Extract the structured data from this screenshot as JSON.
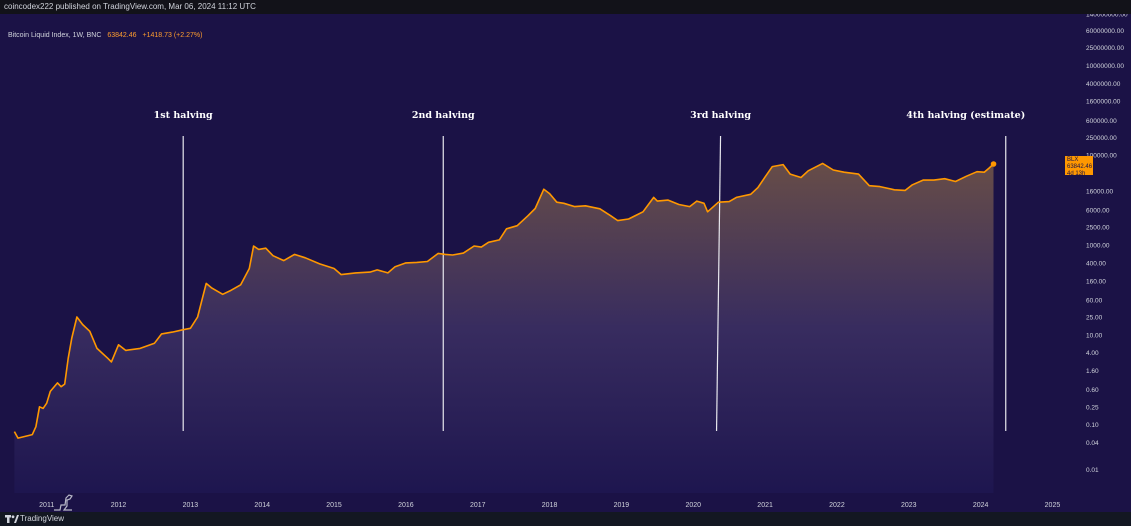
{
  "header": {
    "publish_text": "coincodex222 published on TradingView.com, Mar 06, 2024 11:12 UTC"
  },
  "symbol": {
    "name": "Bitcoin Liquid Index, 1W, BNC",
    "price": "63842.46",
    "change": "+1418.73 (+2.27%)"
  },
  "badge": {
    "ticker": "BLX",
    "price": "63842.46",
    "countdown": "4d 13h"
  },
  "footer": {
    "brand": "TradingView"
  },
  "colors": {
    "background": "#1b1246",
    "line": "#ff9800",
    "axis_text": "#d1d4dc",
    "halving_line": "#e8e8ee"
  },
  "icons": {
    "logo": "tradingview-logo-icon",
    "watermark": "dinosaur-icon"
  },
  "chart_data": {
    "type": "area",
    "title": "Bitcoin Liquid Index, 1W, BNC",
    "xlabel": "",
    "ylabel": "",
    "y_scale": "log",
    "grid": false,
    "xlim": [
      2010.35,
      2025.3
    ],
    "ylim": [
      0.003,
      140000000
    ],
    "x_ticks": [
      "2011",
      "2012",
      "2013",
      "2014",
      "2015",
      "2016",
      "2017",
      "2018",
      "2019",
      "2020",
      "2021",
      "2022",
      "2023",
      "2024",
      "2025"
    ],
    "y_ticks": [
      {
        "value": 140000000,
        "label": "140000000.00"
      },
      {
        "value": 60000000,
        "label": "60000000.00"
      },
      {
        "value": 25000000,
        "label": "25000000.00"
      },
      {
        "value": 10000000,
        "label": "10000000.00"
      },
      {
        "value": 4000000,
        "label": "4000000.00"
      },
      {
        "value": 1600000,
        "label": "1600000.00"
      },
      {
        "value": 600000,
        "label": "600000.00"
      },
      {
        "value": 250000,
        "label": "250000.00"
      },
      {
        "value": 100000,
        "label": "100000.00"
      },
      {
        "value": 16000,
        "label": "16000.00"
      },
      {
        "value": 6000,
        "label": "6000.00"
      },
      {
        "value": 2500,
        "label": "2500.00"
      },
      {
        "value": 1000,
        "label": "1000.00"
      },
      {
        "value": 400,
        "label": "400.00"
      },
      {
        "value": 160,
        "label": "160.00"
      },
      {
        "value": 60,
        "label": "60.00"
      },
      {
        "value": 25,
        "label": "25.00"
      },
      {
        "value": 10,
        "label": "10.00"
      },
      {
        "value": 4,
        "label": "4.00"
      },
      {
        "value": 1.6,
        "label": "1.60"
      },
      {
        "value": 0.6,
        "label": "0.60"
      },
      {
        "value": 0.25,
        "label": "0.25"
      },
      {
        "value": 0.1,
        "label": "0.10"
      },
      {
        "value": 0.04,
        "label": "0.04"
      },
      {
        "value": 0.01,
        "label": "0.01"
      }
    ],
    "series": [
      {
        "values": [
          {
            "x": 2010.55,
            "y": 0.07
          },
          {
            "x": 2010.6,
            "y": 0.05
          },
          {
            "x": 2010.8,
            "y": 0.06
          },
          {
            "x": 2010.85,
            "y": 0.09
          },
          {
            "x": 2010.9,
            "y": 0.25
          },
          {
            "x": 2010.95,
            "y": 0.23
          },
          {
            "x": 2011.0,
            "y": 0.3
          },
          {
            "x": 2011.05,
            "y": 0.55
          },
          {
            "x": 2011.15,
            "y": 0.85
          },
          {
            "x": 2011.2,
            "y": 0.7
          },
          {
            "x": 2011.25,
            "y": 0.8
          },
          {
            "x": 2011.3,
            "y": 3.0
          },
          {
            "x": 2011.35,
            "y": 8.5
          },
          {
            "x": 2011.42,
            "y": 25
          },
          {
            "x": 2011.5,
            "y": 17
          },
          {
            "x": 2011.6,
            "y": 12
          },
          {
            "x": 2011.7,
            "y": 5
          },
          {
            "x": 2011.85,
            "y": 3.0
          },
          {
            "x": 2011.9,
            "y": 2.5
          },
          {
            "x": 2012.0,
            "y": 6
          },
          {
            "x": 2012.1,
            "y": 4.5
          },
          {
            "x": 2012.3,
            "y": 5
          },
          {
            "x": 2012.5,
            "y": 6.5
          },
          {
            "x": 2012.6,
            "y": 10.5
          },
          {
            "x": 2012.75,
            "y": 11.5
          },
          {
            "x": 2012.9,
            "y": 13
          },
          {
            "x": 2013.0,
            "y": 14
          },
          {
            "x": 2013.1,
            "y": 25
          },
          {
            "x": 2013.22,
            "y": 140
          },
          {
            "x": 2013.3,
            "y": 110
          },
          {
            "x": 2013.45,
            "y": 80
          },
          {
            "x": 2013.55,
            "y": 95
          },
          {
            "x": 2013.7,
            "y": 130
          },
          {
            "x": 2013.82,
            "y": 300
          },
          {
            "x": 2013.88,
            "y": 950
          },
          {
            "x": 2013.95,
            "y": 800
          },
          {
            "x": 2014.05,
            "y": 850
          },
          {
            "x": 2014.15,
            "y": 580
          },
          {
            "x": 2014.3,
            "y": 450
          },
          {
            "x": 2014.45,
            "y": 620
          },
          {
            "x": 2014.6,
            "y": 520
          },
          {
            "x": 2014.8,
            "y": 380
          },
          {
            "x": 2015.0,
            "y": 300
          },
          {
            "x": 2015.1,
            "y": 220
          },
          {
            "x": 2015.3,
            "y": 240
          },
          {
            "x": 2015.5,
            "y": 250
          },
          {
            "x": 2015.6,
            "y": 280
          },
          {
            "x": 2015.75,
            "y": 240
          },
          {
            "x": 2015.85,
            "y": 330
          },
          {
            "x": 2016.0,
            "y": 400
          },
          {
            "x": 2016.15,
            "y": 410
          },
          {
            "x": 2016.3,
            "y": 430
          },
          {
            "x": 2016.45,
            "y": 650
          },
          {
            "x": 2016.55,
            "y": 620
          },
          {
            "x": 2016.65,
            "y": 600
          },
          {
            "x": 2016.8,
            "y": 660
          },
          {
            "x": 2016.95,
            "y": 950
          },
          {
            "x": 2017.05,
            "y": 900
          },
          {
            "x": 2017.15,
            "y": 1150
          },
          {
            "x": 2017.3,
            "y": 1300
          },
          {
            "x": 2017.4,
            "y": 2300
          },
          {
            "x": 2017.55,
            "y": 2700
          },
          {
            "x": 2017.7,
            "y": 4500
          },
          {
            "x": 2017.8,
            "y": 6500
          },
          {
            "x": 2017.92,
            "y": 17500
          },
          {
            "x": 2018.0,
            "y": 14000
          },
          {
            "x": 2018.1,
            "y": 9000
          },
          {
            "x": 2018.2,
            "y": 8500
          },
          {
            "x": 2018.35,
            "y": 7200
          },
          {
            "x": 2018.5,
            "y": 7500
          },
          {
            "x": 2018.7,
            "y": 6400
          },
          {
            "x": 2018.85,
            "y": 4500
          },
          {
            "x": 2018.95,
            "y": 3500
          },
          {
            "x": 2019.1,
            "y": 3800
          },
          {
            "x": 2019.3,
            "y": 5500
          },
          {
            "x": 2019.45,
            "y": 11500
          },
          {
            "x": 2019.5,
            "y": 9500
          },
          {
            "x": 2019.65,
            "y": 10000
          },
          {
            "x": 2019.8,
            "y": 8000
          },
          {
            "x": 2019.95,
            "y": 7200
          },
          {
            "x": 2020.05,
            "y": 9500
          },
          {
            "x": 2020.15,
            "y": 8500
          },
          {
            "x": 2020.2,
            "y": 5500
          },
          {
            "x": 2020.35,
            "y": 9000
          },
          {
            "x": 2020.5,
            "y": 9300
          },
          {
            "x": 2020.6,
            "y": 11500
          },
          {
            "x": 2020.8,
            "y": 13500
          },
          {
            "x": 2020.9,
            "y": 19000
          },
          {
            "x": 2021.0,
            "y": 33000
          },
          {
            "x": 2021.1,
            "y": 56000
          },
          {
            "x": 2021.25,
            "y": 62000
          },
          {
            "x": 2021.35,
            "y": 38000
          },
          {
            "x": 2021.5,
            "y": 32000
          },
          {
            "x": 2021.6,
            "y": 45000
          },
          {
            "x": 2021.8,
            "y": 66000
          },
          {
            "x": 2021.95,
            "y": 47000
          },
          {
            "x": 2022.1,
            "y": 42000
          },
          {
            "x": 2022.3,
            "y": 38000
          },
          {
            "x": 2022.45,
            "y": 21000
          },
          {
            "x": 2022.6,
            "y": 20000
          },
          {
            "x": 2022.8,
            "y": 17000
          },
          {
            "x": 2022.95,
            "y": 16500
          },
          {
            "x": 2023.05,
            "y": 22000
          },
          {
            "x": 2023.2,
            "y": 28000
          },
          {
            "x": 2023.35,
            "y": 28000
          },
          {
            "x": 2023.5,
            "y": 30000
          },
          {
            "x": 2023.65,
            "y": 26000
          },
          {
            "x": 2023.8,
            "y": 34000
          },
          {
            "x": 2023.95,
            "y": 43000
          },
          {
            "x": 2024.05,
            "y": 42000
          },
          {
            "x": 2024.12,
            "y": 52000
          },
          {
            "x": 2024.18,
            "y": 63842.46
          }
        ]
      }
    ],
    "annotations": [
      {
        "label": "1st halving",
        "x": 2012.9
      },
      {
        "label": "2nd halving",
        "x": 2016.52
      },
      {
        "label": "3rd halving",
        "x": 2020.38
      },
      {
        "label": "4th halving (estimate)",
        "x": 2024.35
      }
    ]
  }
}
